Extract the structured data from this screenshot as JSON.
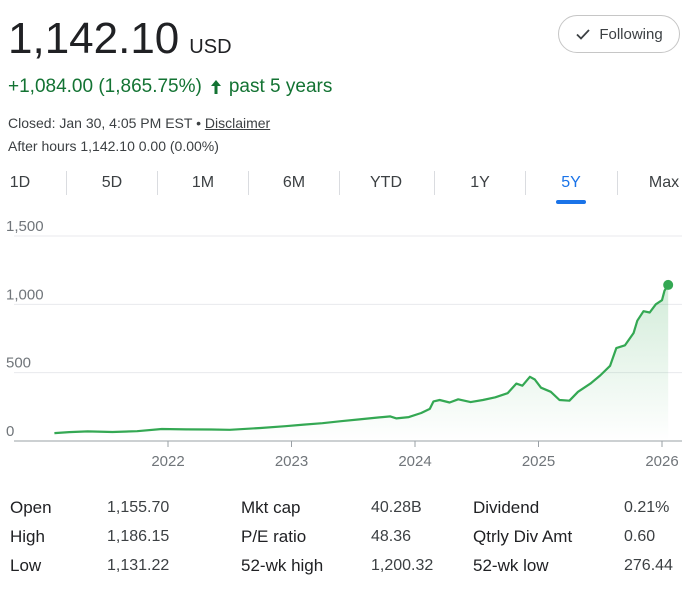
{
  "quote": {
    "price": "1,142.10",
    "currency": "USD",
    "change": "+1,084.00 (1,865.75%)",
    "period": "past 5 years",
    "closed_prefix": "Closed: Jan 30, 4:05 PM EST •",
    "disclaimer": "Disclaimer",
    "after_hours": "After hours 1,142.10 0.00 (0.00%)"
  },
  "follow_button": {
    "label": "Following",
    "icon": "check-icon"
  },
  "range_tabs": {
    "items": [
      "1D",
      "5D",
      "1M",
      "6M",
      "YTD",
      "1Y",
      "5Y",
      "Max"
    ],
    "active": "5Y"
  },
  "colors": {
    "positive": "#137333",
    "line": "#34a853",
    "accent": "#1a73e8"
  },
  "chart_data": {
    "type": "line",
    "y_ticks": [
      "1,500",
      "1,000",
      "500",
      "0"
    ],
    "x_ticks": [
      "2022",
      "2023",
      "2024",
      "2025",
      "2026"
    ],
    "ylim": [
      0,
      1500
    ],
    "series": [
      {
        "values": [
          [
            2021.08,
            58
          ],
          [
            2021.2,
            65
          ],
          [
            2021.35,
            70
          ],
          [
            2021.55,
            66
          ],
          [
            2021.75,
            72
          ],
          [
            2021.95,
            88
          ],
          [
            2022.15,
            85
          ],
          [
            2022.35,
            84
          ],
          [
            2022.5,
            82
          ],
          [
            2022.75,
            95
          ],
          [
            2022.95,
            108
          ],
          [
            2023.1,
            120
          ],
          [
            2023.25,
            130
          ],
          [
            2023.4,
            145
          ],
          [
            2023.55,
            158
          ],
          [
            2023.7,
            172
          ],
          [
            2023.8,
            180
          ],
          [
            2023.85,
            165
          ],
          [
            2023.95,
            175
          ],
          [
            2024.05,
            205
          ],
          [
            2024.12,
            235
          ],
          [
            2024.15,
            290
          ],
          [
            2024.2,
            300
          ],
          [
            2024.28,
            282
          ],
          [
            2024.35,
            305
          ],
          [
            2024.45,
            285
          ],
          [
            2024.55,
            300
          ],
          [
            2024.65,
            320
          ],
          [
            2024.75,
            350
          ],
          [
            2024.82,
            420
          ],
          [
            2024.87,
            405
          ],
          [
            2024.93,
            470
          ],
          [
            2024.97,
            450
          ],
          [
            2025.02,
            390
          ],
          [
            2025.1,
            360
          ],
          [
            2025.17,
            300
          ],
          [
            2025.25,
            295
          ],
          [
            2025.32,
            360
          ],
          [
            2025.42,
            420
          ],
          [
            2025.5,
            480
          ],
          [
            2025.58,
            550
          ],
          [
            2025.63,
            680
          ],
          [
            2025.7,
            700
          ],
          [
            2025.77,
            790
          ],
          [
            2025.8,
            880
          ],
          [
            2025.85,
            950
          ],
          [
            2025.9,
            940
          ],
          [
            2025.95,
            1000
          ],
          [
            2026.0,
            1030
          ],
          [
            2026.02,
            1100
          ],
          [
            2026.05,
            1142.1
          ]
        ]
      }
    ]
  },
  "stats": [
    {
      "label": "Open",
      "value": "1,155.70"
    },
    {
      "label": "High",
      "value": "1,186.15"
    },
    {
      "label": "Low",
      "value": "1,131.22"
    },
    {
      "label": "Mkt cap",
      "value": "40.28B"
    },
    {
      "label": "P/E ratio",
      "value": "48.36"
    },
    {
      "label": "52-wk high",
      "value": "1,200.32"
    },
    {
      "label": "Dividend",
      "value": "0.21%"
    },
    {
      "label": "Qtrly Div Amt",
      "value": "0.60"
    },
    {
      "label": "52-wk low",
      "value": "276.44"
    }
  ]
}
